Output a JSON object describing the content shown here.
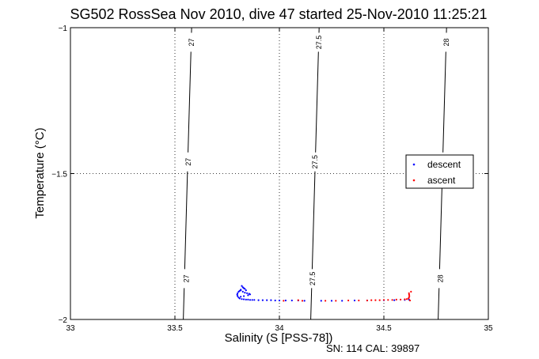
{
  "chart_data": {
    "type": "scatter",
    "title": "SG502 RossSea Nov 2010, dive 47 started 25-Nov-2010 11:25:21",
    "xlabel": "Salinity (S [PSS-78])",
    "ylabel": "Temperature (°C)",
    "xlim": [
      33,
      35
    ],
    "ylim": [
      -2,
      -1
    ],
    "xticks": [
      "33",
      "33.5",
      "34",
      "34.5",
      "35"
    ],
    "yticks": [
      "-1",
      "-1.5",
      "-2"
    ],
    "grid": "dotted",
    "legend_position": "right",
    "footnote": "SN: 114  CAL: 39897",
    "contours": [
      {
        "label": "27",
        "points": [
          [
            33.54,
            -2.0
          ],
          [
            33.56,
            -1.5
          ],
          [
            33.58,
            -1.0
          ]
        ],
        "label_positions": [
          [
            33.555,
            -1.86
          ],
          [
            33.565,
            -1.46
          ],
          [
            33.58,
            -1.05
          ]
        ]
      },
      {
        "label": "27.5",
        "points": [
          [
            34.15,
            -2.0
          ],
          [
            34.17,
            -1.5
          ],
          [
            34.19,
            -1.0
          ]
        ],
        "label_positions": [
          [
            34.16,
            -1.86
          ],
          [
            34.17,
            -1.46
          ],
          [
            34.19,
            -1.05
          ]
        ]
      },
      {
        "label": "28",
        "points": [
          [
            34.76,
            -2.0
          ],
          [
            34.78,
            -1.5
          ],
          [
            34.8,
            -1.0
          ]
        ],
        "label_positions": [
          [
            34.77,
            -1.86
          ],
          [
            34.785,
            -1.46
          ],
          [
            34.8,
            -1.05
          ]
        ]
      }
    ],
    "series": [
      {
        "name": "descent",
        "color": "#0000ff",
        "points": [
          [
            33.82,
            -1.885
          ],
          [
            33.825,
            -1.89
          ],
          [
            33.83,
            -1.893
          ],
          [
            33.835,
            -1.895
          ],
          [
            33.84,
            -1.9
          ],
          [
            33.815,
            -1.898
          ],
          [
            33.81,
            -1.902
          ],
          [
            33.805,
            -1.905
          ],
          [
            33.8,
            -1.91
          ],
          [
            33.798,
            -1.915
          ],
          [
            33.8,
            -1.92
          ],
          [
            33.805,
            -1.925
          ],
          [
            33.81,
            -1.928
          ],
          [
            33.82,
            -1.93
          ],
          [
            33.83,
            -1.931
          ],
          [
            33.84,
            -1.932
          ],
          [
            33.85,
            -1.932
          ],
          [
            33.86,
            -1.933
          ],
          [
            33.87,
            -1.933
          ],
          [
            33.88,
            -1.933
          ],
          [
            33.9,
            -1.934
          ],
          [
            33.92,
            -1.934
          ],
          [
            33.94,
            -1.934
          ],
          [
            33.96,
            -1.934
          ],
          [
            33.98,
            -1.935
          ],
          [
            34.0,
            -1.935
          ],
          [
            34.03,
            -1.935
          ],
          [
            34.06,
            -1.935
          ],
          [
            34.09,
            -1.935
          ],
          [
            34.12,
            -1.936
          ],
          [
            34.2,
            -1.936
          ],
          [
            34.25,
            -1.936
          ],
          [
            34.3,
            -1.936
          ],
          [
            34.36,
            -1.935
          ],
          [
            34.42,
            -1.935
          ],
          [
            34.5,
            -1.934
          ],
          [
            34.55,
            -1.934
          ],
          [
            34.6,
            -1.933
          ],
          [
            34.62,
            -1.932
          ],
          [
            33.815,
            -1.9
          ],
          [
            33.825,
            -1.905
          ],
          [
            33.835,
            -1.908
          ],
          [
            33.845,
            -1.91
          ],
          [
            33.855,
            -1.912
          ],
          [
            33.86,
            -1.914
          ],
          [
            33.85,
            -1.917
          ],
          [
            33.83,
            -1.92
          ],
          [
            33.815,
            -1.922
          ]
        ]
      },
      {
        "name": "ascent",
        "color": "#ff0000",
        "points": [
          [
            34.62,
            -1.91
          ],
          [
            34.621,
            -1.915
          ],
          [
            34.622,
            -1.92
          ],
          [
            34.62,
            -1.925
          ],
          [
            34.618,
            -1.928
          ],
          [
            34.61,
            -1.93
          ],
          [
            34.6,
            -1.931
          ],
          [
            34.58,
            -1.932
          ],
          [
            34.56,
            -1.932
          ],
          [
            34.54,
            -1.933
          ],
          [
            34.52,
            -1.933
          ],
          [
            34.5,
            -1.933
          ],
          [
            34.48,
            -1.934
          ],
          [
            34.46,
            -1.934
          ],
          [
            34.44,
            -1.934
          ],
          [
            34.42,
            -1.935
          ],
          [
            34.38,
            -1.935
          ],
          [
            34.33,
            -1.935
          ],
          [
            34.27,
            -1.936
          ],
          [
            34.22,
            -1.936
          ],
          [
            34.11,
            -1.936
          ],
          [
            34.02,
            -1.936
          ],
          [
            34.09,
            -1.934
          ],
          [
            34.63,
            -1.905
          ],
          [
            34.625,
            -1.935
          ]
        ]
      }
    ]
  }
}
